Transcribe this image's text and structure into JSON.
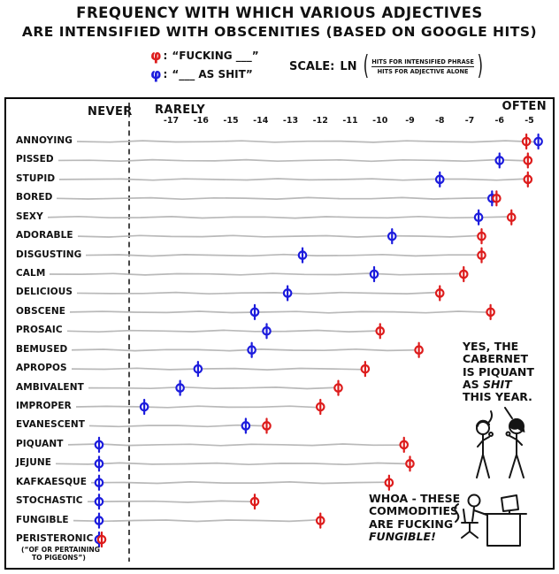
{
  "title": {
    "line1": "FREQUENCY WITH WHICH VARIOUS ADJECTIVES",
    "line2": "ARE INTENSIFIED WITH OBSCENITIES (BASED ON GOOGLE HITS)"
  },
  "legend": {
    "items": [
      {
        "symbol": "φ",
        "colon": ":",
        "label": "“FUCKING ___”",
        "color": "#dd1c1c"
      },
      {
        "symbol": "φ",
        "colon": ":",
        "label": "“___ AS SHIT”",
        "color": "#1c1cdd"
      }
    ],
    "scale": {
      "prefix": "SCALE:",
      "fn": "LN",
      "numerator": "HITS FOR INTENSIFIED PHRASE",
      "denominator": "HITS FOR ADJECTIVE ALONE"
    }
  },
  "axis": {
    "left_label": "NEVER",
    "mid_label": "RARELY",
    "right_label": "OFTEN",
    "ticks": [
      -17,
      -16,
      -15,
      -14,
      -13,
      -12,
      -11,
      -10,
      -9,
      -8,
      -7,
      -6,
      -5
    ]
  },
  "chart_data": {
    "type": "scatter",
    "title": "Frequency with which various adjectives are intensified with obscenities (based on Google hits)",
    "xlabel": "LN(hits for intensified phrase / hits for adjective alone)",
    "xlim": [
      -18.5,
      -3.9
    ],
    "grid": false,
    "legend_position": "top",
    "series": [
      {
        "name": "“FUCKING ___”",
        "color": "#dd1c1c"
      },
      {
        "name": "“___ AS SHIT”",
        "color": "#1c1cdd"
      }
    ],
    "never_means": "plotted in the NEVER zone left of the dashed line (no hits)",
    "rows": [
      {
        "adjective": "ANNOYING",
        "fucking": -5.1,
        "as_shit": -4.7
      },
      {
        "adjective": "PISSED",
        "fucking": -5.05,
        "as_shit": -6.0
      },
      {
        "adjective": "STUPID",
        "fucking": -5.05,
        "as_shit": -8.0
      },
      {
        "adjective": "BORED",
        "fucking": -6.1,
        "as_shit": -6.25
      },
      {
        "adjective": "SEXY",
        "fucking": -5.6,
        "as_shit": -6.7
      },
      {
        "adjective": "ADORABLE",
        "fucking": -6.6,
        "as_shit": -9.6
      },
      {
        "adjective": "DISGUSTING",
        "fucking": -6.6,
        "as_shit": -12.6
      },
      {
        "adjective": "CALM",
        "fucking": -7.2,
        "as_shit": -10.2
      },
      {
        "adjective": "DELICIOUS",
        "fucking": -8.0,
        "as_shit": -13.1
      },
      {
        "adjective": "OBSCENE",
        "fucking": -6.3,
        "as_shit": -14.2
      },
      {
        "adjective": "PROSAIC",
        "fucking": -10.0,
        "as_shit": -13.8
      },
      {
        "adjective": "BEMUSED",
        "fucking": -8.7,
        "as_shit": -14.3
      },
      {
        "adjective": "APROPOS",
        "fucking": -10.5,
        "as_shit": -16.1
      },
      {
        "adjective": "AMBIVALENT",
        "fucking": -11.4,
        "as_shit": -16.7
      },
      {
        "adjective": "IMPROPER",
        "fucking": -12.0,
        "as_shit": -17.9
      },
      {
        "adjective": "EVANESCENT",
        "fucking": -13.8,
        "as_shit": -14.5
      },
      {
        "adjective": "PIQUANT",
        "fucking": -9.2,
        "as_shit": null
      },
      {
        "adjective": "JEJUNE",
        "fucking": -9.0,
        "as_shit": null
      },
      {
        "adjective": "KAFKAESQUE",
        "fucking": -9.7,
        "as_shit": null
      },
      {
        "adjective": "STOCHASTIC",
        "fucking": -14.2,
        "as_shit": null
      },
      {
        "adjective": "FUNGIBLE",
        "fucking": -12.0,
        "as_shit": null
      },
      {
        "adjective": "PERISTERONIC",
        "fucking": null,
        "as_shit": null
      }
    ]
  },
  "annotations": {
    "wine_speech": {
      "lines": [
        "YES, THE",
        "CABERNET",
        "IS PIQUANT",
        "AS SHIT",
        "THIS YEAR."
      ],
      "emphasis": "SHIT"
    },
    "desk_speech": {
      "lines": [
        "WHOA - THESE",
        "COMMODITIES",
        "ARE FUCKING",
        "FUNGIBLE!"
      ],
      "emphasis": "FUNGIBLE!"
    },
    "footnote": {
      "line1": "(“OF OR PERTAINING",
      "line2": "TO PIGEONS”)"
    }
  },
  "colors": {
    "fucking_red": "#dd1c1c",
    "as_shit_blue": "#1c1cdd",
    "row_line_gray": "#b9b9b9",
    "ink": "#111111"
  }
}
